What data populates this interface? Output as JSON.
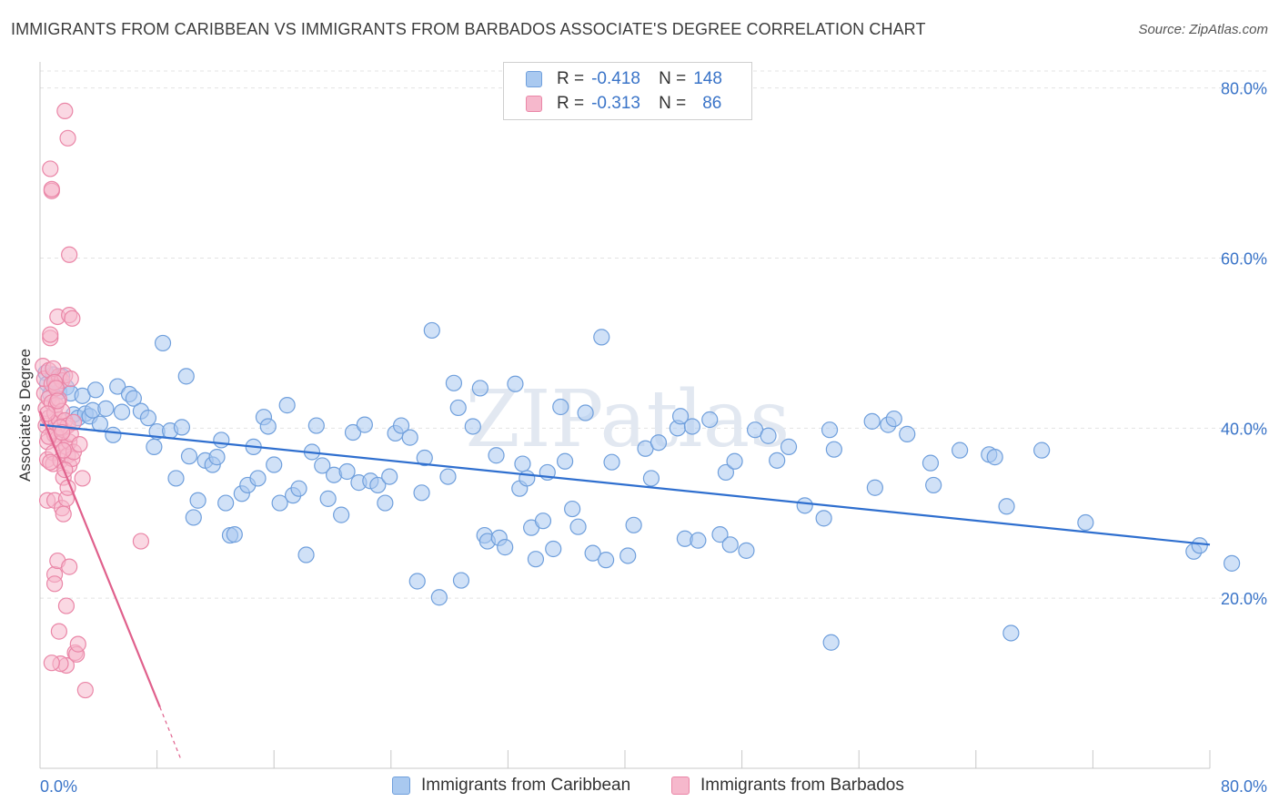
{
  "title": "IMMIGRANTS FROM CARIBBEAN VS IMMIGRANTS FROM BARBADOS ASSOCIATE'S DEGREE CORRELATION CHART",
  "source": "Source: ZipAtlas.com",
  "watermark": "ZIPatlas",
  "colors": {
    "blue_fill": "#a9c9f0",
    "blue_stroke": "#6f9fdc",
    "blue_line": "#2f6fcf",
    "pink_fill": "#f6b8cc",
    "pink_stroke": "#ea86a7",
    "pink_line": "#e0608c",
    "axis_text": "#3a74c8",
    "grid": "#e3e3e3"
  },
  "legend": {
    "r_label": "R =",
    "n_label": "N =",
    "rows": [
      {
        "r": "-0.418",
        "n": "148"
      },
      {
        "r": "-0.313",
        "n": "86"
      }
    ]
  },
  "chart_data": {
    "type": "scatter",
    "title": "IMMIGRANTS FROM CARIBBEAN VS IMMIGRANTS FROM BARBADOS ASSOCIATE'S DEGREE CORRELATION CHART",
    "xlabel": "",
    "ylabel": "Associate's Degree",
    "xlim": [
      0,
      80
    ],
    "ylim": [
      0,
      82
    ],
    "x_tick_labels": [
      "0.0%",
      "80.0%"
    ],
    "y_ticks": [
      20,
      40,
      60,
      80
    ],
    "y_tick_labels": [
      "20.0%",
      "40.0%",
      "60.0%",
      "80.0%"
    ],
    "grid": true,
    "legend_position": "top-center",
    "series": [
      {
        "name": "Immigrants from Caribbean",
        "color": "#a9c9f0",
        "trend": {
          "x": [
            0,
            80
          ],
          "y": [
            40.4,
            26.3
          ]
        },
        "points": [
          [
            0.4,
            46.5
          ],
          [
            0.5,
            45.2
          ],
          [
            0.7,
            44.0
          ],
          [
            0.9,
            46.3
          ],
          [
            1.1,
            45.7
          ],
          [
            1.3,
            44.3
          ],
          [
            1.5,
            46.1
          ],
          [
            1.8,
            44.8
          ],
          [
            2.1,
            44.1
          ],
          [
            2.3,
            41.6
          ],
          [
            2.6,
            41.2
          ],
          [
            2.9,
            43.8
          ],
          [
            3.1,
            41.7
          ],
          [
            3.4,
            41.4
          ],
          [
            3.6,
            42.1
          ],
          [
            3.8,
            44.5
          ],
          [
            4.1,
            40.5
          ],
          [
            4.5,
            42.3
          ],
          [
            5.0,
            39.2
          ],
          [
            5.3,
            44.9
          ],
          [
            5.6,
            41.9
          ],
          [
            6.1,
            44.0
          ],
          [
            6.4,
            43.5
          ],
          [
            6.9,
            42.0
          ],
          [
            7.4,
            41.2
          ],
          [
            7.8,
            37.8
          ],
          [
            8.0,
            39.6
          ],
          [
            8.4,
            50.0
          ],
          [
            8.9,
            39.7
          ],
          [
            9.3,
            34.1
          ],
          [
            9.7,
            40.1
          ],
          [
            10.0,
            46.1
          ],
          [
            10.2,
            36.7
          ],
          [
            10.5,
            29.5
          ],
          [
            10.8,
            31.5
          ],
          [
            11.3,
            36.2
          ],
          [
            11.8,
            35.7
          ],
          [
            12.1,
            36.6
          ],
          [
            12.4,
            38.6
          ],
          [
            12.7,
            31.2
          ],
          [
            13.0,
            27.4
          ],
          [
            13.3,
            27.5
          ],
          [
            13.8,
            32.3
          ],
          [
            14.2,
            33.3
          ],
          [
            14.6,
            37.8
          ],
          [
            14.9,
            34.1
          ],
          [
            15.3,
            41.3
          ],
          [
            15.6,
            40.2
          ],
          [
            16.0,
            35.7
          ],
          [
            16.4,
            31.2
          ],
          [
            16.9,
            42.7
          ],
          [
            17.3,
            32.1
          ],
          [
            17.7,
            32.9
          ],
          [
            18.2,
            25.1
          ],
          [
            18.6,
            37.2
          ],
          [
            18.9,
            40.3
          ],
          [
            19.3,
            35.6
          ],
          [
            19.7,
            31.7
          ],
          [
            20.1,
            34.5
          ],
          [
            20.6,
            29.8
          ],
          [
            21.0,
            34.9
          ],
          [
            21.4,
            39.5
          ],
          [
            21.8,
            33.6
          ],
          [
            22.2,
            40.4
          ],
          [
            22.6,
            33.8
          ],
          [
            23.1,
            33.3
          ],
          [
            23.6,
            31.2
          ],
          [
            23.9,
            34.3
          ],
          [
            24.3,
            39.4
          ],
          [
            24.7,
            40.3
          ],
          [
            25.3,
            38.9
          ],
          [
            25.8,
            22.0
          ],
          [
            26.1,
            32.4
          ],
          [
            26.3,
            36.5
          ],
          [
            26.8,
            51.5
          ],
          [
            27.3,
            20.1
          ],
          [
            27.9,
            34.3
          ],
          [
            28.3,
            45.3
          ],
          [
            28.6,
            42.4
          ],
          [
            28.8,
            22.1
          ],
          [
            29.6,
            40.2
          ],
          [
            30.1,
            44.7
          ],
          [
            30.4,
            27.4
          ],
          [
            30.6,
            26.7
          ],
          [
            31.2,
            36.8
          ],
          [
            31.4,
            27.1
          ],
          [
            31.8,
            26.0
          ],
          [
            32.5,
            45.2
          ],
          [
            32.8,
            32.9
          ],
          [
            33.0,
            35.8
          ],
          [
            33.3,
            34.1
          ],
          [
            33.6,
            28.3
          ],
          [
            33.9,
            24.6
          ],
          [
            34.4,
            29.1
          ],
          [
            34.7,
            34.8
          ],
          [
            35.1,
            25.8
          ],
          [
            35.6,
            42.5
          ],
          [
            35.9,
            36.1
          ],
          [
            36.4,
            30.5
          ],
          [
            36.8,
            28.4
          ],
          [
            37.3,
            41.8
          ],
          [
            37.8,
            25.3
          ],
          [
            38.4,
            50.7
          ],
          [
            38.7,
            24.5
          ],
          [
            39.1,
            36.0
          ],
          [
            40.2,
            25.0
          ],
          [
            40.6,
            28.6
          ],
          [
            41.4,
            37.6
          ],
          [
            41.8,
            34.1
          ],
          [
            42.3,
            38.3
          ],
          [
            43.6,
            40.0
          ],
          [
            43.8,
            41.4
          ],
          [
            44.1,
            27.0
          ],
          [
            44.6,
            40.2
          ],
          [
            45.0,
            26.8
          ],
          [
            45.8,
            41.0
          ],
          [
            46.5,
            27.5
          ],
          [
            46.9,
            34.8
          ],
          [
            47.2,
            26.3
          ],
          [
            47.5,
            36.1
          ],
          [
            48.3,
            25.6
          ],
          [
            48.9,
            39.8
          ],
          [
            49.8,
            39.1
          ],
          [
            50.4,
            36.2
          ],
          [
            51.2,
            37.8
          ],
          [
            52.3,
            30.9
          ],
          [
            53.6,
            29.4
          ],
          [
            54.0,
            39.8
          ],
          [
            54.3,
            37.5
          ],
          [
            54.1,
            14.8
          ],
          [
            56.9,
            40.8
          ],
          [
            57.1,
            33.0
          ],
          [
            58.0,
            40.4
          ],
          [
            58.4,
            41.1
          ],
          [
            59.3,
            39.3
          ],
          [
            60.9,
            35.9
          ],
          [
            61.1,
            33.3
          ],
          [
            62.9,
            37.4
          ],
          [
            64.9,
            36.9
          ],
          [
            65.3,
            36.6
          ],
          [
            66.1,
            30.8
          ],
          [
            66.4,
            15.9
          ],
          [
            68.5,
            37.4
          ],
          [
            71.5,
            28.9
          ],
          [
            78.9,
            25.5
          ],
          [
            79.3,
            26.2
          ],
          [
            81.5,
            24.1
          ]
        ]
      },
      {
        "name": "Immigrants from Barbados",
        "color": "#f6b8cc",
        "trend": {
          "x": [
            0,
            8.2,
            9.6
          ],
          "y": [
            42.0,
            7.2,
            1.2
          ]
        },
        "points": [
          [
            0.2,
            47.3
          ],
          [
            0.3,
            44.1
          ],
          [
            0.3,
            45.8
          ],
          [
            0.4,
            42.3
          ],
          [
            0.4,
            40.3
          ],
          [
            0.5,
            38.4
          ],
          [
            0.5,
            36.3
          ],
          [
            0.5,
            31.5
          ],
          [
            0.6,
            46.8
          ],
          [
            0.6,
            43.5
          ],
          [
            0.6,
            41.2
          ],
          [
            0.7,
            50.6
          ],
          [
            0.7,
            51.0
          ],
          [
            0.7,
            70.5
          ],
          [
            0.8,
            67.9
          ],
          [
            0.8,
            68.1
          ],
          [
            0.8,
            45.2
          ],
          [
            0.8,
            43.0
          ],
          [
            0.9,
            39.7
          ],
          [
            0.9,
            37.1
          ],
          [
            0.9,
            35.8
          ],
          [
            1.0,
            41.8
          ],
          [
            1.0,
            39.2
          ],
          [
            1.0,
            31.5
          ],
          [
            1.0,
            22.8
          ],
          [
            1.0,
            21.7
          ],
          [
            1.1,
            44.9
          ],
          [
            1.1,
            42.7
          ],
          [
            1.1,
            40.6
          ],
          [
            1.2,
            53.1
          ],
          [
            1.2,
            38.8
          ],
          [
            1.2,
            24.4
          ],
          [
            1.3,
            46.1
          ],
          [
            1.3,
            43.4
          ],
          [
            1.3,
            41.0
          ],
          [
            1.3,
            16.1
          ],
          [
            1.4,
            38.2
          ],
          [
            1.4,
            36.2
          ],
          [
            1.5,
            45.6
          ],
          [
            1.5,
            42.0
          ],
          [
            1.5,
            30.6
          ],
          [
            1.6,
            39.8
          ],
          [
            1.6,
            34.2
          ],
          [
            1.6,
            29.9
          ],
          [
            1.7,
            77.3
          ],
          [
            1.7,
            46.2
          ],
          [
            1.7,
            40.9
          ],
          [
            1.8,
            37.8
          ],
          [
            1.8,
            31.7
          ],
          [
            1.8,
            19.1
          ],
          [
            1.8,
            12.1
          ],
          [
            1.9,
            74.1
          ],
          [
            1.9,
            40.3
          ],
          [
            1.9,
            36.8
          ],
          [
            1.9,
            33.0
          ],
          [
            2.0,
            60.4
          ],
          [
            2.0,
            53.3
          ],
          [
            2.0,
            38.4
          ],
          [
            2.0,
            35.6
          ],
          [
            2.0,
            23.7
          ],
          [
            2.1,
            45.8
          ],
          [
            2.1,
            39.3
          ],
          [
            2.2,
            52.9
          ],
          [
            2.2,
            36.4
          ],
          [
            2.3,
            37.2
          ],
          [
            2.4,
            13.6
          ],
          [
            2.5,
            13.4
          ],
          [
            2.6,
            14.6
          ],
          [
            2.7,
            38.1
          ],
          [
            2.9,
            34.1
          ],
          [
            3.1,
            9.2
          ],
          [
            6.9,
            26.7
          ],
          [
            0.5,
            41.7
          ],
          [
            0.6,
            39.0
          ],
          [
            0.7,
            36.0
          ],
          [
            0.9,
            47.0
          ],
          [
            1.0,
            45.4
          ],
          [
            1.1,
            44.7
          ],
          [
            1.2,
            43.2
          ],
          [
            1.4,
            40.1
          ],
          [
            1.5,
            39.5
          ],
          [
            1.6,
            37.4
          ],
          [
            1.7,
            35.1
          ],
          [
            1.4,
            12.3
          ],
          [
            0.8,
            12.4
          ],
          [
            2.3,
            40.7
          ]
        ]
      }
    ]
  },
  "bottom_legend": [
    "Immigrants from Caribbean",
    "Immigrants from Barbados"
  ]
}
